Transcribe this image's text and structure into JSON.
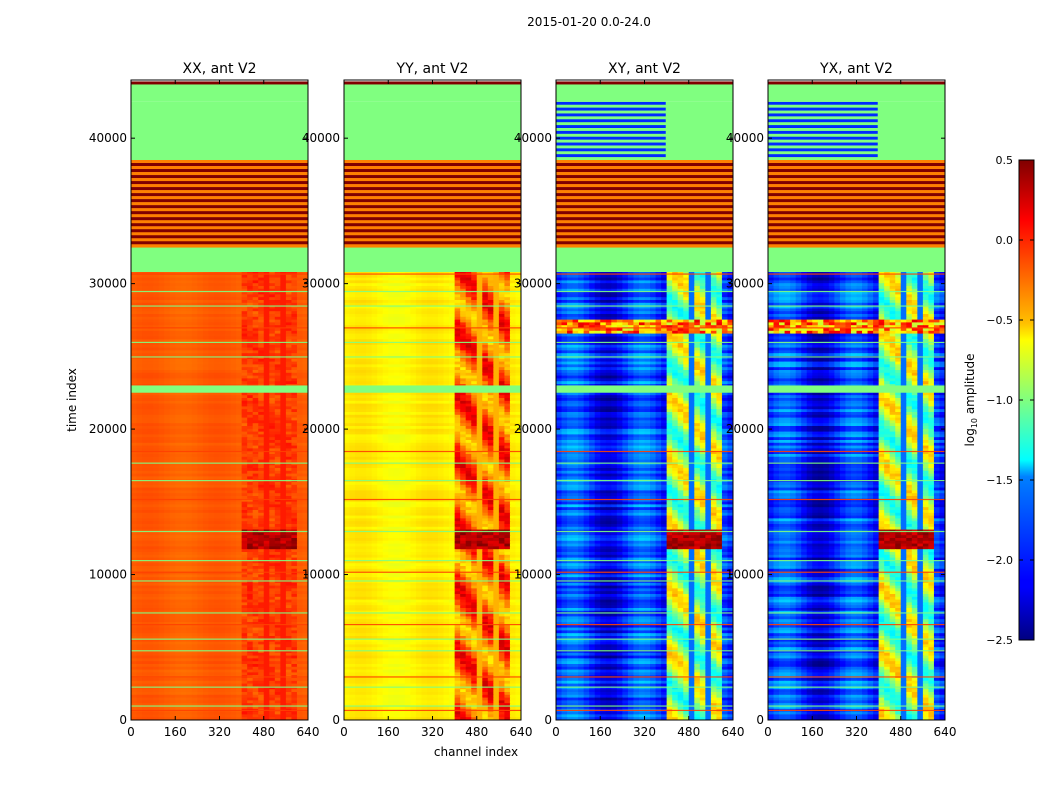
{
  "suptitle": "2015-01-20 0.0-24.0",
  "chart_data": {
    "type": "heatmap",
    "x_label": "channel index",
    "y_label": "time index",
    "x_range": [
      0,
      640
    ],
    "y_range": [
      0,
      44000
    ],
    "x_ticks": [
      0,
      160,
      320,
      480,
      640
    ],
    "y_ticks": [
      0,
      10000,
      20000,
      30000,
      40000
    ],
    "panels": [
      {
        "title": "XX, ant V2",
        "base": -0.15,
        "band": -0.05,
        "band_osc": 0.04,
        "stripe_amp": 0.03
      },
      {
        "title": "YY, ant V2",
        "base": -0.6,
        "band": -0.15,
        "band_osc": 0.35,
        "stripe_amp": 0.05
      },
      {
        "title": "XY, ant V2",
        "base": -2.0,
        "band": -0.9,
        "band_osc": 0.45,
        "stripe_amp": 0.25
      },
      {
        "title": "YX, ant V2",
        "base": -2.0,
        "band": -0.9,
        "band_osc": 0.45,
        "stripe_amp": 0.25
      }
    ],
    "time_sections": [
      {
        "from": 30800,
        "to": 32500,
        "level": -1.0,
        "label": "flagged"
      },
      {
        "from": 32500,
        "to": 38500,
        "level": 0.5,
        "label": "saturated-striped"
      },
      {
        "from": 38500,
        "to": 42500,
        "level": -1.0,
        "label": "partially-flagged"
      },
      {
        "from": 42500,
        "to": 43900,
        "level": -1.0,
        "label": "flagged"
      },
      {
        "from": 22500,
        "to": 23000,
        "level": -1.0,
        "label": "flagged"
      }
    ],
    "bright_region": {
      "channel_from": 400,
      "channel_to": 600,
      "time_from": 11800,
      "time_to": 13100,
      "level": 0.5
    },
    "colorbar": {
      "label_prefix": "log",
      "label_subscript": "10",
      "label_suffix": " amplitude",
      "min": -2.5,
      "max": 0.5,
      "ticks": [
        "0.5",
        "0.0",
        "−0.5",
        "−1.0",
        "−1.5",
        "−2.0",
        "−2.5"
      ],
      "tick_values": [
        0.5,
        0.0,
        -0.5,
        -1.0,
        -1.5,
        -2.0,
        -2.5
      ],
      "colormap": "jet"
    }
  }
}
